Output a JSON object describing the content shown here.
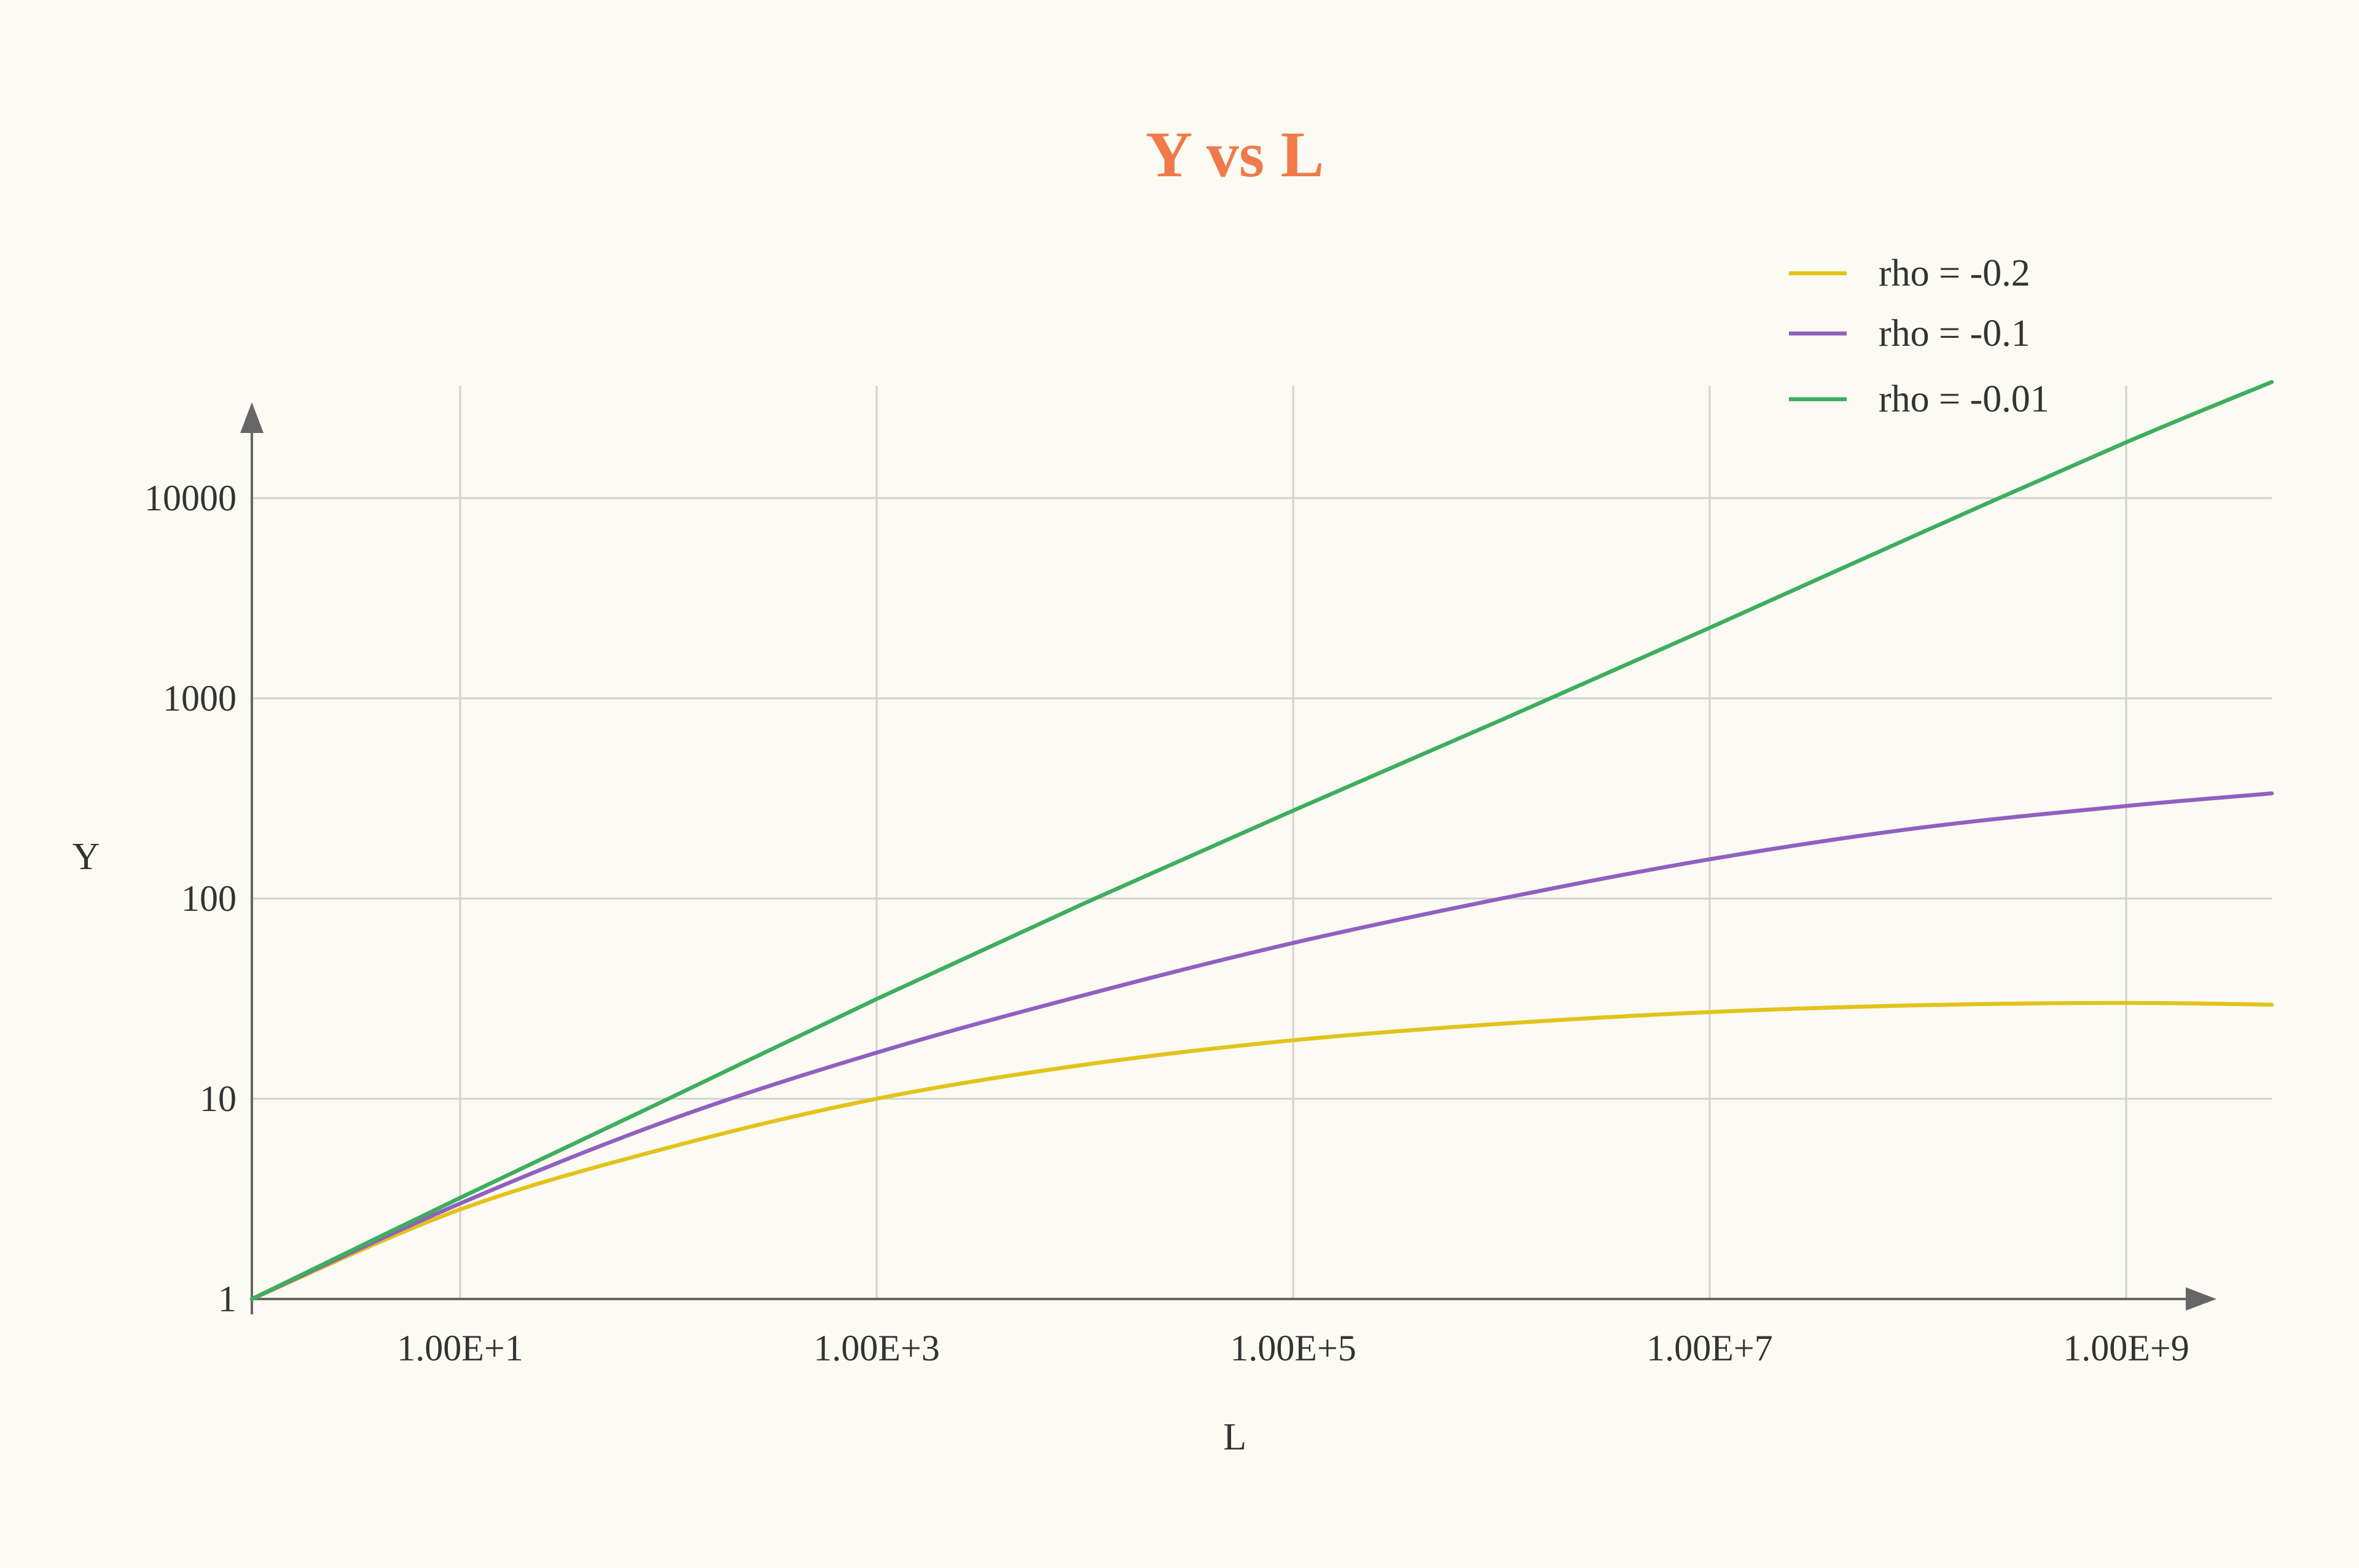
{
  "chart_data": {
    "type": "line",
    "title": "Y vs L",
    "xlabel": "L",
    "ylabel": "Y",
    "x_scale": "log",
    "y_scale": "log",
    "xlim": [
      1,
      10000000000
    ],
    "ylim": [
      1,
      40000
    ],
    "x_ticks": [
      10,
      1000,
      100000,
      10000000,
      1000000000
    ],
    "x_tick_labels": [
      "1.00E+1",
      "1.00E+3",
      "1.00E+5",
      "1.00E+7",
      "1.00E+9"
    ],
    "y_ticks": [
      1,
      10,
      100,
      1000,
      10000
    ],
    "y_tick_labels": [
      "1",
      "10",
      "100",
      "1000",
      "10000"
    ],
    "grid": true,
    "legend_position": "top-right",
    "series": [
      {
        "name": "rho = -0.2",
        "color": "#E3C31A",
        "x": [
          1,
          10,
          100,
          1000,
          10000,
          100000,
          1000000,
          10000000,
          100000000,
          1000000000,
          5000000000
        ],
        "y": [
          1,
          2.8,
          5.7,
          10,
          14.8,
          19.6,
          23.7,
          27.1,
          29.3,
          30.1,
          29.5
        ]
      },
      {
        "name": "rho = -0.1",
        "color": "#9060C0",
        "x": [
          1,
          10,
          100,
          1000,
          10000,
          100000,
          1000000,
          10000000,
          100000000,
          1000000000,
          5000000000
        ],
        "y": [
          1,
          3.0,
          7.8,
          17,
          33,
          60,
          100,
          157,
          225,
          290,
          335
        ]
      },
      {
        "name": "rho = -0.01",
        "color": "#3DAE5E",
        "x": [
          1,
          10,
          100,
          1000,
          10000,
          100000,
          1000000,
          10000000,
          100000000,
          1000000000,
          5000000000
        ],
        "y": [
          1,
          3.2,
          10,
          31.5,
          95,
          275,
          780,
          2250,
          6600,
          19000,
          38000
        ]
      }
    ]
  }
}
